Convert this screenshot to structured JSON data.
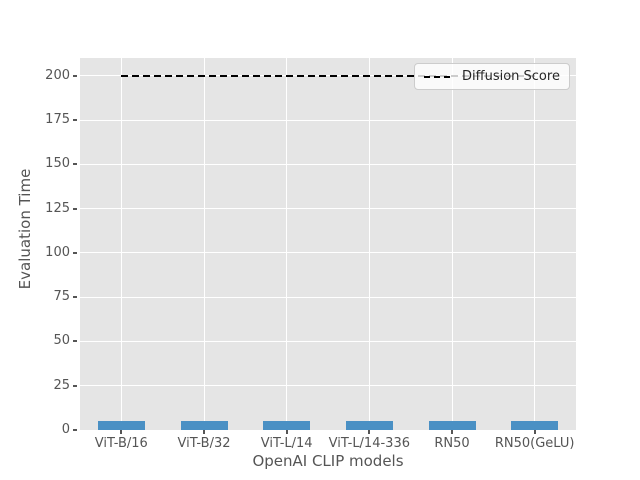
{
  "chart_data": {
    "type": "bar",
    "title": "",
    "xlabel": "OpenAI CLIP models",
    "ylabel": "Evaluation Time",
    "categories": [
      "ViT-B/16",
      "ViT-B/32",
      "ViT-L/14",
      "ViT-L/14-336",
      "RN50",
      "RN50(GeLU)"
    ],
    "values": [
      5,
      5,
      5,
      5,
      5,
      5
    ],
    "yticks": [
      0,
      25,
      50,
      75,
      100,
      125,
      150,
      175,
      200
    ],
    "ylim": [
      0,
      210
    ],
    "grid": true,
    "reference_line": {
      "label": "Diffusion Score",
      "value": 200,
      "style": "dashed",
      "color": "#000000"
    },
    "legend": {
      "entries": [
        "Diffusion Score"
      ],
      "position": "upper right"
    },
    "colors": {
      "bar": "#4a90c4",
      "plot_bg": "#e5e5e5",
      "grid": "#ffffff",
      "tick_text": "#555555",
      "label_text": "#555555",
      "legend_text": "#262626",
      "legend_border": "#cccccc",
      "reference_line": "#000000"
    }
  }
}
